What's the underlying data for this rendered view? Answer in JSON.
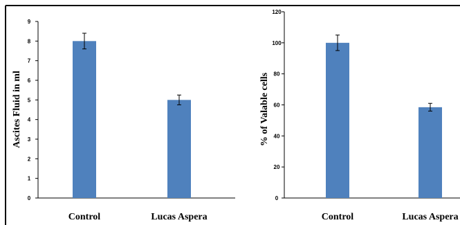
{
  "chart_data": [
    {
      "type": "bar",
      "title": "",
      "xlabel": "",
      "ylabel": "Ascites Fluid in ml",
      "categories": [
        "Control",
        "Lucas Aspera"
      ],
      "values": [
        8.0,
        5.0
      ],
      "error": [
        0.4,
        0.25
      ],
      "ylim": [
        0,
        9
      ],
      "yticks": [
        0,
        1,
        2,
        3,
        4,
        5,
        6,
        7,
        8,
        9
      ],
      "color": "#4f81bd",
      "grid": false
    },
    {
      "type": "bar",
      "title": "",
      "xlabel": "",
      "ylabel": "% of Valable cells",
      "categories": [
        "Control",
        "Lucas Aspera"
      ],
      "values": [
        100,
        58.5
      ],
      "error": [
        5,
        2.5
      ],
      "ylim": [
        0,
        120
      ],
      "yticks": [
        0,
        20,
        40,
        60,
        80,
        100,
        120
      ],
      "color": "#4f81bd",
      "grid": false
    }
  ]
}
